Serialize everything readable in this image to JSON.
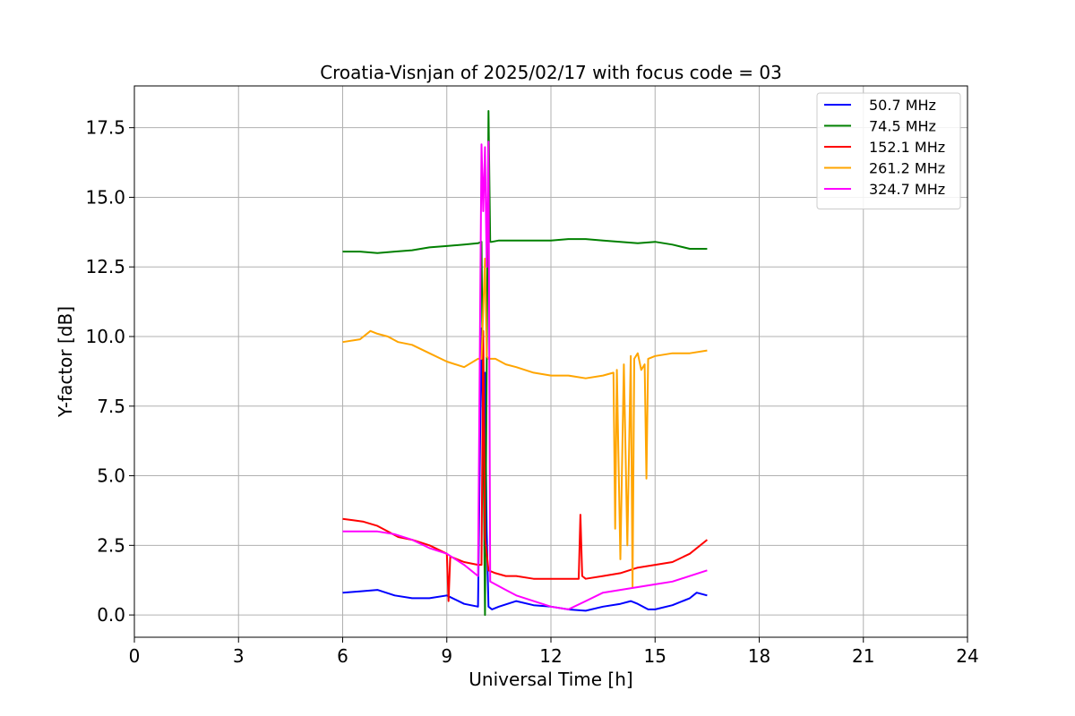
{
  "chart_data": {
    "type": "line",
    "title": "Croatia-Visnjan of 2025/02/17 with focus code = 03",
    "xlabel": "Universal Time [h]",
    "ylabel": "Y-factor [dB]",
    "xlim": [
      0,
      24
    ],
    "ylim": [
      -0.8,
      19.0
    ],
    "xticks": [
      0,
      3,
      6,
      9,
      12,
      15,
      18,
      21,
      24
    ],
    "xtick_labels": [
      "0",
      "3",
      "6",
      "9",
      "12",
      "15",
      "18",
      "21",
      "24"
    ],
    "yticks": [
      0.0,
      2.5,
      5.0,
      7.5,
      10.0,
      12.5,
      15.0,
      17.5
    ],
    "ytick_labels": [
      "0.0",
      "2.5",
      "5.0",
      "7.5",
      "10.0",
      "12.5",
      "15.0",
      "17.5"
    ],
    "grid": true,
    "legend_position": "top-right",
    "series": [
      {
        "name": " 50.7 MHz",
        "color": "#0000ff",
        "x": [
          6.0,
          6.5,
          7.0,
          7.5,
          8.0,
          8.5,
          9.0,
          9.5,
          9.9,
          10.0,
          10.05,
          10.1,
          10.15,
          10.2,
          10.3,
          10.5,
          11.0,
          11.5,
          12.0,
          12.5,
          13.0,
          13.5,
          14.0,
          14.3,
          14.5,
          14.8,
          15.0,
          15.5,
          16.0,
          16.2,
          16.5
        ],
        "values": [
          0.8,
          0.85,
          0.9,
          0.7,
          0.6,
          0.6,
          0.7,
          0.4,
          0.3,
          10.3,
          6.5,
          8.7,
          3.0,
          0.3,
          0.2,
          0.3,
          0.5,
          0.35,
          0.3,
          0.2,
          0.15,
          0.3,
          0.4,
          0.5,
          0.4,
          0.2,
          0.2,
          0.35,
          0.6,
          0.8,
          0.7
        ]
      },
      {
        "name": " 74.5 MHz",
        "color": "#008000",
        "x": [
          6.0,
          6.5,
          7.0,
          7.5,
          8.0,
          8.5,
          9.0,
          9.5,
          9.9,
          10.0,
          10.1,
          10.2,
          10.25,
          10.3,
          10.5,
          11.0,
          11.5,
          12.0,
          12.5,
          13.0,
          13.5,
          14.0,
          14.5,
          15.0,
          15.5,
          16.0,
          16.5
        ],
        "values": [
          13.05,
          13.05,
          13.0,
          13.05,
          13.1,
          13.2,
          13.25,
          13.3,
          13.35,
          13.4,
          0.0,
          18.1,
          13.4,
          13.4,
          13.45,
          13.45,
          13.45,
          13.45,
          13.5,
          13.5,
          13.45,
          13.4,
          13.35,
          13.4,
          13.3,
          13.15,
          13.15
        ]
      },
      {
        "name": " 152.1 MHz",
        "color": "#ff0000",
        "x": [
          6.0,
          6.3,
          6.6,
          7.0,
          7.3,
          7.6,
          8.0,
          8.5,
          9.0,
          9.05,
          9.1,
          9.5,
          9.9,
          10.0,
          10.05,
          10.1,
          10.2,
          10.4,
          10.7,
          11.0,
          11.5,
          12.0,
          12.5,
          12.8,
          12.85,
          12.9,
          13.0,
          13.5,
          14.0,
          14.5,
          15.0,
          15.5,
          16.0,
          16.5
        ],
        "values": [
          3.45,
          3.4,
          3.35,
          3.2,
          3.0,
          2.8,
          2.7,
          2.5,
          2.2,
          0.5,
          2.1,
          1.9,
          1.8,
          1.8,
          10.2,
          2.8,
          1.6,
          1.5,
          1.4,
          1.4,
          1.3,
          1.3,
          1.3,
          1.3,
          3.6,
          1.4,
          1.3,
          1.4,
          1.5,
          1.7,
          1.8,
          1.9,
          2.2,
          2.7
        ]
      },
      {
        "name": " 261.2 MHz",
        "color": "#ffa500",
        "x": [
          6.0,
          6.5,
          6.8,
          7.0,
          7.3,
          7.6,
          8.0,
          8.5,
          9.0,
          9.5,
          9.9,
          10.0,
          10.1,
          10.15,
          10.2,
          10.4,
          10.7,
          11.0,
          11.5,
          12.0,
          12.5,
          13.0,
          13.5,
          13.8,
          13.85,
          13.9,
          14.0,
          14.1,
          14.2,
          14.3,
          14.35,
          14.4,
          14.5,
          14.6,
          14.7,
          14.75,
          14.8,
          15.0,
          15.5,
          16.0,
          16.5
        ],
        "values": [
          9.8,
          9.9,
          10.2,
          10.1,
          10.0,
          9.8,
          9.7,
          9.4,
          9.1,
          8.9,
          9.2,
          9.2,
          12.8,
          9.3,
          9.2,
          9.2,
          9.0,
          8.9,
          8.7,
          8.6,
          8.6,
          8.5,
          8.6,
          8.7,
          3.1,
          8.8,
          2.0,
          9.0,
          2.5,
          9.3,
          1.0,
          9.2,
          9.4,
          8.8,
          9.0,
          4.9,
          9.2,
          9.3,
          9.4,
          9.4,
          9.5
        ]
      },
      {
        "name": " 324.7 MHz",
        "color": "#ff00ff",
        "x": [
          6.0,
          6.5,
          7.0,
          7.5,
          8.0,
          8.5,
          9.0,
          9.5,
          9.9,
          10.0,
          10.05,
          10.1,
          10.15,
          10.2,
          10.25,
          10.4,
          10.7,
          11.0,
          11.5,
          12.0,
          12.5,
          13.0,
          13.5,
          14.0,
          14.5,
          15.0,
          15.5,
          16.0,
          16.5
        ],
        "values": [
          3.0,
          3.0,
          3.0,
          2.9,
          2.7,
          2.4,
          2.2,
          1.8,
          1.4,
          16.9,
          14.5,
          16.8,
          12.5,
          17.0,
          1.2,
          1.1,
          0.9,
          0.7,
          0.5,
          0.3,
          0.2,
          0.5,
          0.8,
          0.9,
          1.0,
          1.1,
          1.2,
          1.4,
          1.6
        ]
      }
    ]
  }
}
